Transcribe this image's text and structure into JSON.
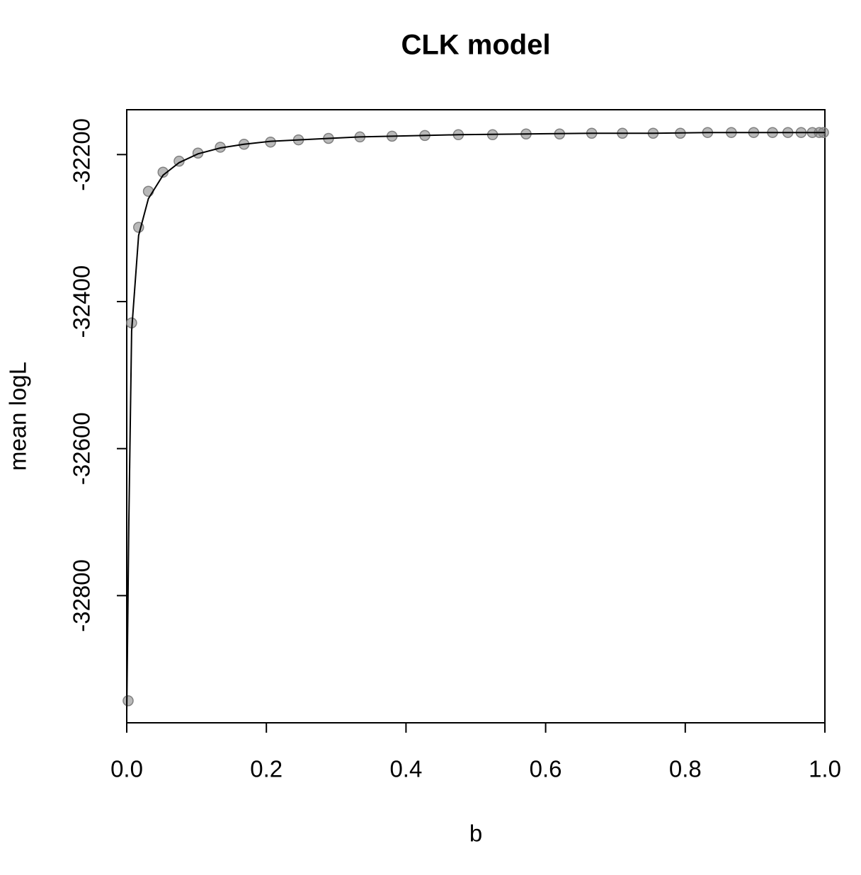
{
  "chart_data": {
    "type": "scatter",
    "title": "CLK model",
    "x_label": "b",
    "y_label": "mean logL",
    "xlim": [
      0,
      1
    ],
    "ylim": [
      -32973,
      -32139
    ],
    "xticks": [
      {
        "value": 0,
        "label": "0.0"
      },
      0.2,
      0.4,
      0.6,
      0.8,
      {
        "value": 1,
        "label": "1.0"
      }
    ],
    "yticks": [
      -32200,
      -32400,
      -32600,
      -32800
    ],
    "series": [
      {
        "type": "scatter",
        "color": "#808080",
        "x": [
          0.002,
          0.007,
          0.017,
          0.031,
          0.052,
          0.075,
          0.102,
          0.134,
          0.168,
          0.206,
          0.246,
          0.289,
          0.334,
          0.38,
          0.427,
          0.475,
          0.524,
          0.572,
          0.62,
          0.666,
          0.71,
          0.754,
          0.793,
          0.832,
          0.866,
          0.898,
          0.925,
          0.947,
          0.966,
          0.982,
          0.992,
          0.998
        ],
        "values": [
          -32943,
          -32429,
          -32299,
          -32250,
          -32224,
          -32209,
          -32198,
          -32190,
          -32186,
          -32183,
          -32180,
          -32178,
          -32176,
          -32175,
          -32174,
          -32173,
          -32173,
          -32172,
          -32172,
          -32171,
          -32171,
          -32171,
          -32171,
          -32170,
          -32170,
          -32170,
          -32170,
          -32170,
          -32170,
          -32170,
          -32170,
          -32170
        ]
      },
      {
        "type": "line",
        "color": "#000000",
        "x": [
          0,
          0.003,
          0.007,
          0.017,
          0.031,
          0.052,
          0.075,
          0.102,
          0.134,
          0.168,
          0.206,
          0.246,
          0.289,
          0.334,
          0.38,
          0.475,
          0.572,
          0.666,
          0.754,
          0.832,
          0.898,
          0.947,
          0.982,
          1.0
        ],
        "values": [
          -32960,
          -32700,
          -32440,
          -32310,
          -32260,
          -32228,
          -32211,
          -32199,
          -32191,
          -32186,
          -32182,
          -32180,
          -32178,
          -32176,
          -32175,
          -32173,
          -32172,
          -32171,
          -32171,
          -32170,
          -32170,
          -32170,
          -32170,
          -32170
        ]
      }
    ]
  }
}
